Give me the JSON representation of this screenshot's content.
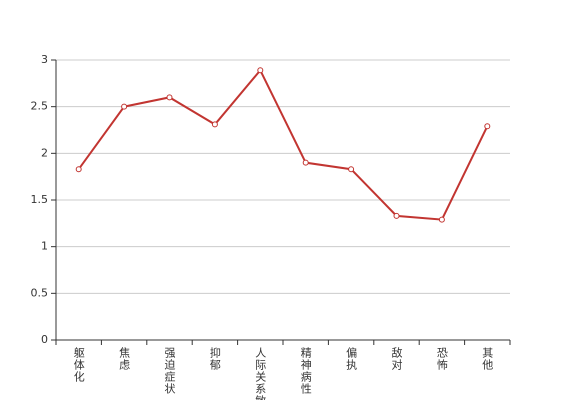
{
  "chart_data": {
    "type": "line",
    "categories": [
      "躯体化",
      "焦虑",
      "强迫症状",
      "抑郁",
      "人际关系敏感",
      "精神病性",
      "偏执",
      "敌对",
      "恐怖",
      "其他"
    ],
    "series": [
      {
        "color": "#c23531",
        "values": [
          1.83,
          2.5,
          2.6,
          2.31,
          2.89,
          1.9,
          1.83,
          1.33,
          1.29,
          2.29
        ]
      }
    ],
    "ylim": [
      0,
      3
    ],
    "yticks": [
      0,
      0.5,
      1,
      1.5,
      2,
      2.5,
      3
    ],
    "grid": true
  }
}
